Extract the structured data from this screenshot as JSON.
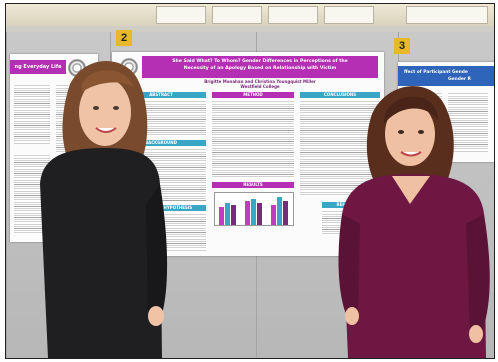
{
  "scene": {
    "description_tag": "poster-session-photo"
  },
  "boards": [
    {
      "number": "2"
    },
    {
      "number": "3"
    }
  ],
  "posters": {
    "left_partial": {
      "title": "ng Everyday Life"
    },
    "center": {
      "title_line1": "She Said What? To Whom? Gender Differences in Perceptions of the",
      "title_line2": "Necessity of an Apology Based on Relationship with Victim",
      "authors": "Brigitte Monahan and Christina Youngquist Miller",
      "college": "Westfield College",
      "sections": {
        "abstract": "ABSTRACT",
        "method": "METHOD",
        "conclusions": "CONCLUSIONS",
        "background": "BACKGROUND",
        "purpose": "PURPOSE AND HYPOTHESIS",
        "results": "RESULTS",
        "references": "REFERENCES"
      },
      "chart_data": {
        "type": "bar",
        "groups": 3,
        "colors": [
          "#c23ac2",
          "#3aa6c6",
          "#7a2a7a"
        ]
      }
    },
    "right_partial": {
      "title_line1": "ffect of Participant Gende",
      "title_line2": "Gender R"
    }
  },
  "colors": {
    "magenta": "#b52fb5",
    "teal": "#3aa6c6",
    "board_yellow": "#e7b92a",
    "left_sweater": "#1f1f22",
    "right_sweater": "#6d1742"
  }
}
